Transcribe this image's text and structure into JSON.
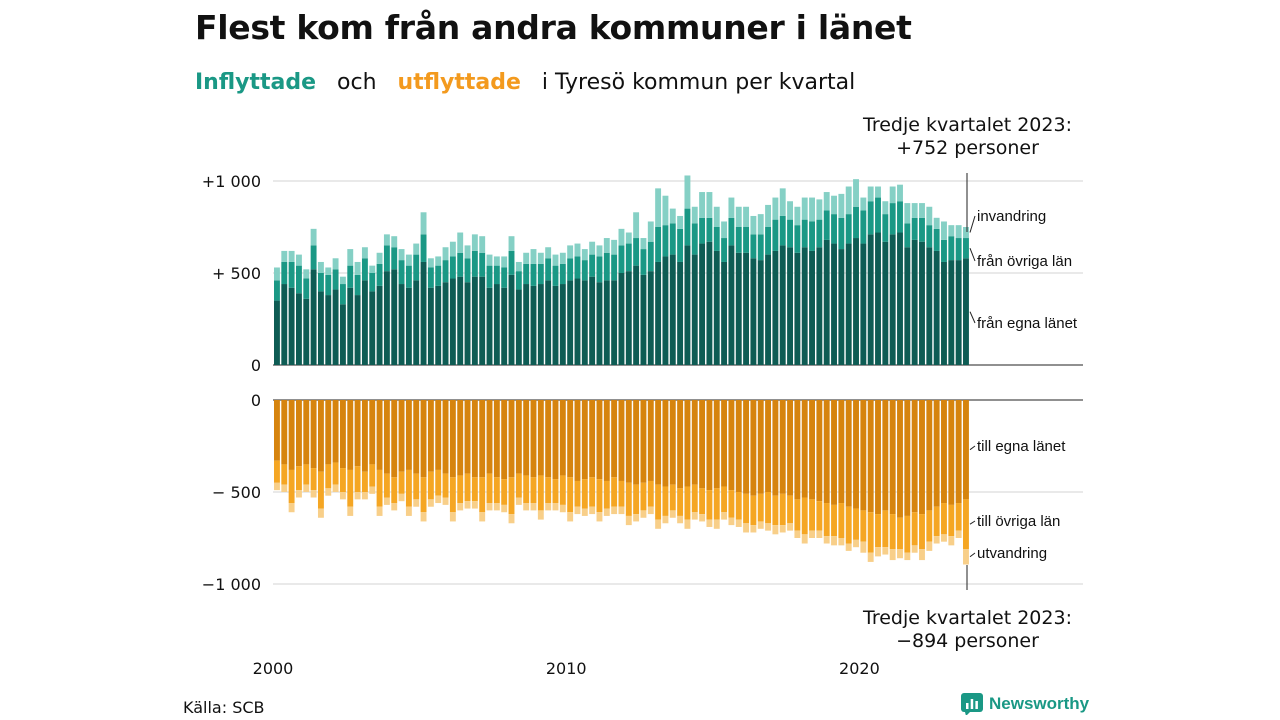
{
  "title": "Flest kom från andra kommuner i länet",
  "subtitle": {
    "in_word": "Inflyttade",
    "and_word": "och",
    "out_word": "utflyttade",
    "rest": "i Tyresö kommun per kvartal"
  },
  "annotation_top": {
    "line1": "Tredje kvartalet 2023:",
    "line2": "+752 personer"
  },
  "annotation_bottom": {
    "line1": "Tredje kvartalet 2023:",
    "line2": "−894 personer"
  },
  "source": "Källa: SCB",
  "brand": "Newsworthy",
  "colors": {
    "in_own": "#0e5c54",
    "in_other": "#1a9885",
    "in_immig": "#85d0c5",
    "out_own": "#d6840e",
    "out_other": "#f5a623",
    "out_emig": "#f8cf89",
    "brand": "#1a9885"
  },
  "chart_data": [
    {
      "type": "bar",
      "stacked": true,
      "title": "Inflyttade",
      "x_start": "2000 Q1",
      "x_end": "2023 Q3",
      "x_ticks": [
        "2000",
        "2010",
        "2020"
      ],
      "y_ticks": [
        {
          "value": 0,
          "label": "0"
        },
        {
          "value": 500,
          "label": "+ 500"
        },
        {
          "value": 1000,
          "label": "+1 000"
        }
      ],
      "ylim": [
        0,
        1000
      ],
      "grid": true,
      "series": [
        {
          "name": "från egna länet",
          "values": [
            350,
            440,
            420,
            390,
            360,
            520,
            400,
            380,
            410,
            330,
            420,
            380,
            460,
            400,
            430,
            510,
            520,
            440,
            420,
            460,
            560,
            420,
            430,
            450,
            470,
            480,
            450,
            480,
            480,
            420,
            440,
            420,
            490,
            410,
            440,
            430,
            440,
            460,
            430,
            440,
            460,
            470,
            460,
            480,
            450,
            460,
            460,
            500,
            510,
            540,
            490,
            510,
            560,
            590,
            600,
            560,
            650,
            600,
            660,
            670,
            620,
            560,
            650,
            610,
            610,
            580,
            570,
            600,
            620,
            650,
            640,
            610,
            640,
            620,
            640,
            680,
            660,
            630,
            660,
            690,
            660,
            710,
            720,
            670,
            710,
            720,
            640,
            680,
            670,
            640,
            620,
            560,
            570,
            570,
            580
          ]
        },
        {
          "name": "från övriga län",
          "values": [
            110,
            120,
            140,
            150,
            110,
            130,
            100,
            110,
            110,
            110,
            120,
            110,
            120,
            100,
            120,
            140,
            120,
            130,
            120,
            140,
            150,
            110,
            110,
            120,
            120,
            130,
            130,
            140,
            130,
            120,
            100,
            110,
            130,
            100,
            110,
            120,
            110,
            120,
            110,
            110,
            120,
            120,
            110,
            120,
            140,
            150,
            140,
            150,
            150,
            150,
            140,
            160,
            190,
            170,
            170,
            180,
            200,
            170,
            140,
            130,
            130,
            130,
            150,
            140,
            140,
            130,
            140,
            150,
            170,
            160,
            150,
            150,
            150,
            160,
            150,
            160,
            160,
            170,
            160,
            170,
            180,
            180,
            190,
            150,
            170,
            170,
            130,
            120,
            130,
            120,
            120,
            120,
            130,
            120,
            110
          ]
        },
        {
          "name": "invandring",
          "values": [
            70,
            60,
            60,
            60,
            50,
            90,
            60,
            40,
            60,
            40,
            90,
            70,
            60,
            40,
            60,
            60,
            60,
            60,
            60,
            60,
            120,
            50,
            50,
            70,
            80,
            110,
            70,
            90,
            90,
            60,
            50,
            60,
            80,
            50,
            60,
            80,
            60,
            60,
            60,
            60,
            70,
            70,
            60,
            70,
            60,
            80,
            80,
            90,
            60,
            140,
            60,
            110,
            210,
            160,
            80,
            70,
            180,
            90,
            140,
            140,
            110,
            90,
            110,
            110,
            110,
            100,
            110,
            120,
            120,
            150,
            100,
            100,
            120,
            130,
            110,
            100,
            100,
            130,
            150,
            150,
            70,
            80,
            60,
            70,
            90,
            90,
            110,
            80,
            80,
            100,
            60,
            100,
            60,
            70,
            60
          ]
        }
      ]
    },
    {
      "type": "bar",
      "stacked": true,
      "title": "Utflyttade",
      "x_start": "2000 Q1",
      "x_end": "2023 Q3",
      "x_ticks": [
        "2000",
        "2010",
        "2020"
      ],
      "y_ticks": [
        {
          "value": 0,
          "label": "0"
        },
        {
          "value": -500,
          "label": "− 500"
        },
        {
          "value": -1000,
          "label": "−1 000"
        }
      ],
      "ylim": [
        -1000,
        0
      ],
      "grid": true,
      "series": [
        {
          "name": "till egna länet",
          "values": [
            -330,
            -350,
            -380,
            -360,
            -350,
            -370,
            -390,
            -350,
            -340,
            -370,
            -380,
            -360,
            -390,
            -350,
            -380,
            -400,
            -420,
            -390,
            -380,
            -400,
            -420,
            -390,
            -380,
            -400,
            -420,
            -410,
            -400,
            -420,
            -420,
            -400,
            -420,
            -430,
            -420,
            -400,
            -410,
            -420,
            -410,
            -420,
            -430,
            -410,
            -420,
            -440,
            -430,
            -420,
            -430,
            -440,
            -420,
            -440,
            -450,
            -460,
            -450,
            -440,
            -460,
            -470,
            -460,
            -480,
            -470,
            -460,
            -480,
            -490,
            -480,
            -470,
            -490,
            -500,
            -510,
            -520,
            -510,
            -500,
            -520,
            -510,
            -520,
            -540,
            -530,
            -540,
            -550,
            -560,
            -570,
            -560,
            -580,
            -590,
            -600,
            -610,
            -620,
            -600,
            -620,
            -640,
            -630,
            -610,
            -620,
            -600,
            -580,
            -560,
            -570,
            -560,
            -540
          ]
        },
        {
          "name": "till övriga län",
          "values": [
            -120,
            -110,
            -180,
            -130,
            -110,
            -120,
            -200,
            -130,
            -120,
            -130,
            -200,
            -140,
            -110,
            -120,
            -200,
            -130,
            -140,
            -120,
            -200,
            -140,
            -190,
            -150,
            -140,
            -130,
            -190,
            -150,
            -150,
            -130,
            -190,
            -160,
            -140,
            -140,
            -200,
            -130,
            -150,
            -140,
            -190,
            -140,
            -130,
            -160,
            -190,
            -140,
            -160,
            -160,
            -180,
            -150,
            -160,
            -140,
            -180,
            -160,
            -150,
            -140,
            -190,
            -160,
            -140,
            -150,
            -180,
            -150,
            -140,
            -160,
            -170,
            -140,
            -150,
            -150,
            -160,
            -160,
            -150,
            -170,
            -160,
            -170,
            -150,
            -170,
            -200,
            -170,
            -160,
            -180,
            -170,
            -190,
            -200,
            -170,
            -170,
            -220,
            -180,
            -200,
            -190,
            -170,
            -200,
            -180,
            -190,
            -170,
            -160,
            -170,
            -170,
            -150,
            -270
          ]
        },
        {
          "name": "utvandring",
          "values": [
            -40,
            -40,
            -50,
            -40,
            -40,
            -40,
            -50,
            -40,
            -40,
            -40,
            -50,
            -40,
            -40,
            -40,
            -50,
            -40,
            -40,
            -40,
            -50,
            -40,
            -50,
            -40,
            -40,
            -40,
            -50,
            -40,
            -40,
            -40,
            -50,
            -40,
            -40,
            -40,
            -50,
            -40,
            -40,
            -40,
            -50,
            -40,
            -40,
            -40,
            -50,
            -40,
            -40,
            -40,
            -50,
            -40,
            -40,
            -40,
            -50,
            -40,
            -40,
            -40,
            -50,
            -40,
            -40,
            -40,
            -50,
            -40,
            -40,
            -40,
            -50,
            -40,
            -40,
            -40,
            -50,
            -40,
            -40,
            -40,
            -50,
            -40,
            -40,
            -40,
            -50,
            -40,
            -40,
            -40,
            -50,
            -40,
            -40,
            -40,
            -60,
            -50,
            -50,
            -40,
            -60,
            -50,
            -40,
            -40,
            -60,
            -50,
            -40,
            -40,
            -50,
            -40,
            -84
          ]
        }
      ]
    }
  ]
}
